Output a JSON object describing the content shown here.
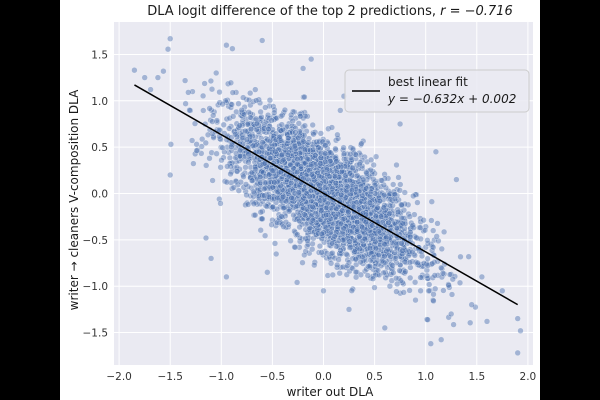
{
  "chart_data": {
    "type": "scatter",
    "title": "DLA logit difference of the top 2 predictions, ",
    "title_stat": "r = −0.716",
    "xlabel": "writer out DLA",
    "ylabel": "writer → cleaners V-composition DLA",
    "xlim": [
      -2.05,
      2.05
    ],
    "ylim": [
      -1.85,
      1.85
    ],
    "xticks": [
      -2.0,
      -1.5,
      -1.0,
      -0.5,
      0.0,
      0.5,
      1.0,
      1.5,
      2.0
    ],
    "xtick_labels": [
      "−2.0",
      "−1.5",
      "−1.0",
      "−0.5",
      "0.0",
      "0.5",
      "1.0",
      "1.5",
      "2.0"
    ],
    "yticks": [
      -1.5,
      -1.0,
      -0.5,
      0.0,
      0.5,
      1.0,
      1.5
    ],
    "ytick_labels": [
      "−1.5",
      "−1.0",
      "−0.5",
      "0.0",
      "0.5",
      "1.0",
      "1.5"
    ],
    "correlation_r": -0.716,
    "fit": {
      "slope": -0.632,
      "intercept": 0.002,
      "x_range": [
        -1.85,
        1.9
      ]
    },
    "legend": {
      "label": "best linear fit",
      "equation": "y = −0.632x + 0.002",
      "position": "top-right"
    },
    "grid": true,
    "background_color": "#eaeaf2",
    "point_color": "#4c72b0",
    "line_color": "#000000",
    "n_points": 4000,
    "outliers": [
      {
        "x": -1.5,
        "y": 1.67
      },
      {
        "x": -1.85,
        "y": 1.33
      },
      {
        "x": -1.75,
        "y": 1.25
      },
      {
        "x": -1.62,
        "y": 1.25
      },
      {
        "x": -1.05,
        "y": 1.3
      },
      {
        "x": -0.95,
        "y": 1.6
      },
      {
        "x": -0.6,
        "y": 1.65
      },
      {
        "x": -0.12,
        "y": 1.45
      },
      {
        "x": -0.2,
        "y": 1.35
      },
      {
        "x": 1.9,
        "y": -1.72
      },
      {
        "x": 1.9,
        "y": -1.35
      },
      {
        "x": 1.05,
        "y": -1.62
      },
      {
        "x": 0.6,
        "y": -1.45
      },
      {
        "x": 0.25,
        "y": -1.25
      },
      {
        "x": 0.0,
        "y": -1.05
      },
      {
        "x": -1.1,
        "y": -0.7
      },
      {
        "x": -1.15,
        "y": -0.48
      },
      {
        "x": 0.75,
        "y": 0.75
      },
      {
        "x": 1.55,
        "y": -0.9
      },
      {
        "x": 1.75,
        "y": -1.05
      },
      {
        "x": 1.45,
        "y": -1.2
      },
      {
        "x": 1.6,
        "y": -1.38
      },
      {
        "x": 0.9,
        "y": -1.15
      },
      {
        "x": -0.8,
        "y": 0.9
      },
      {
        "x": 0.2,
        "y": 1.05
      },
      {
        "x": -1.5,
        "y": 0.2
      },
      {
        "x": -0.95,
        "y": -0.9
      },
      {
        "x": 1.1,
        "y": 0.45
      },
      {
        "x": 0.65,
        "y": -1.0
      },
      {
        "x": -0.55,
        "y": -0.85
      },
      {
        "x": 1.25,
        "y": -1.3
      },
      {
        "x": 1.3,
        "y": 0.15
      }
    ]
  }
}
